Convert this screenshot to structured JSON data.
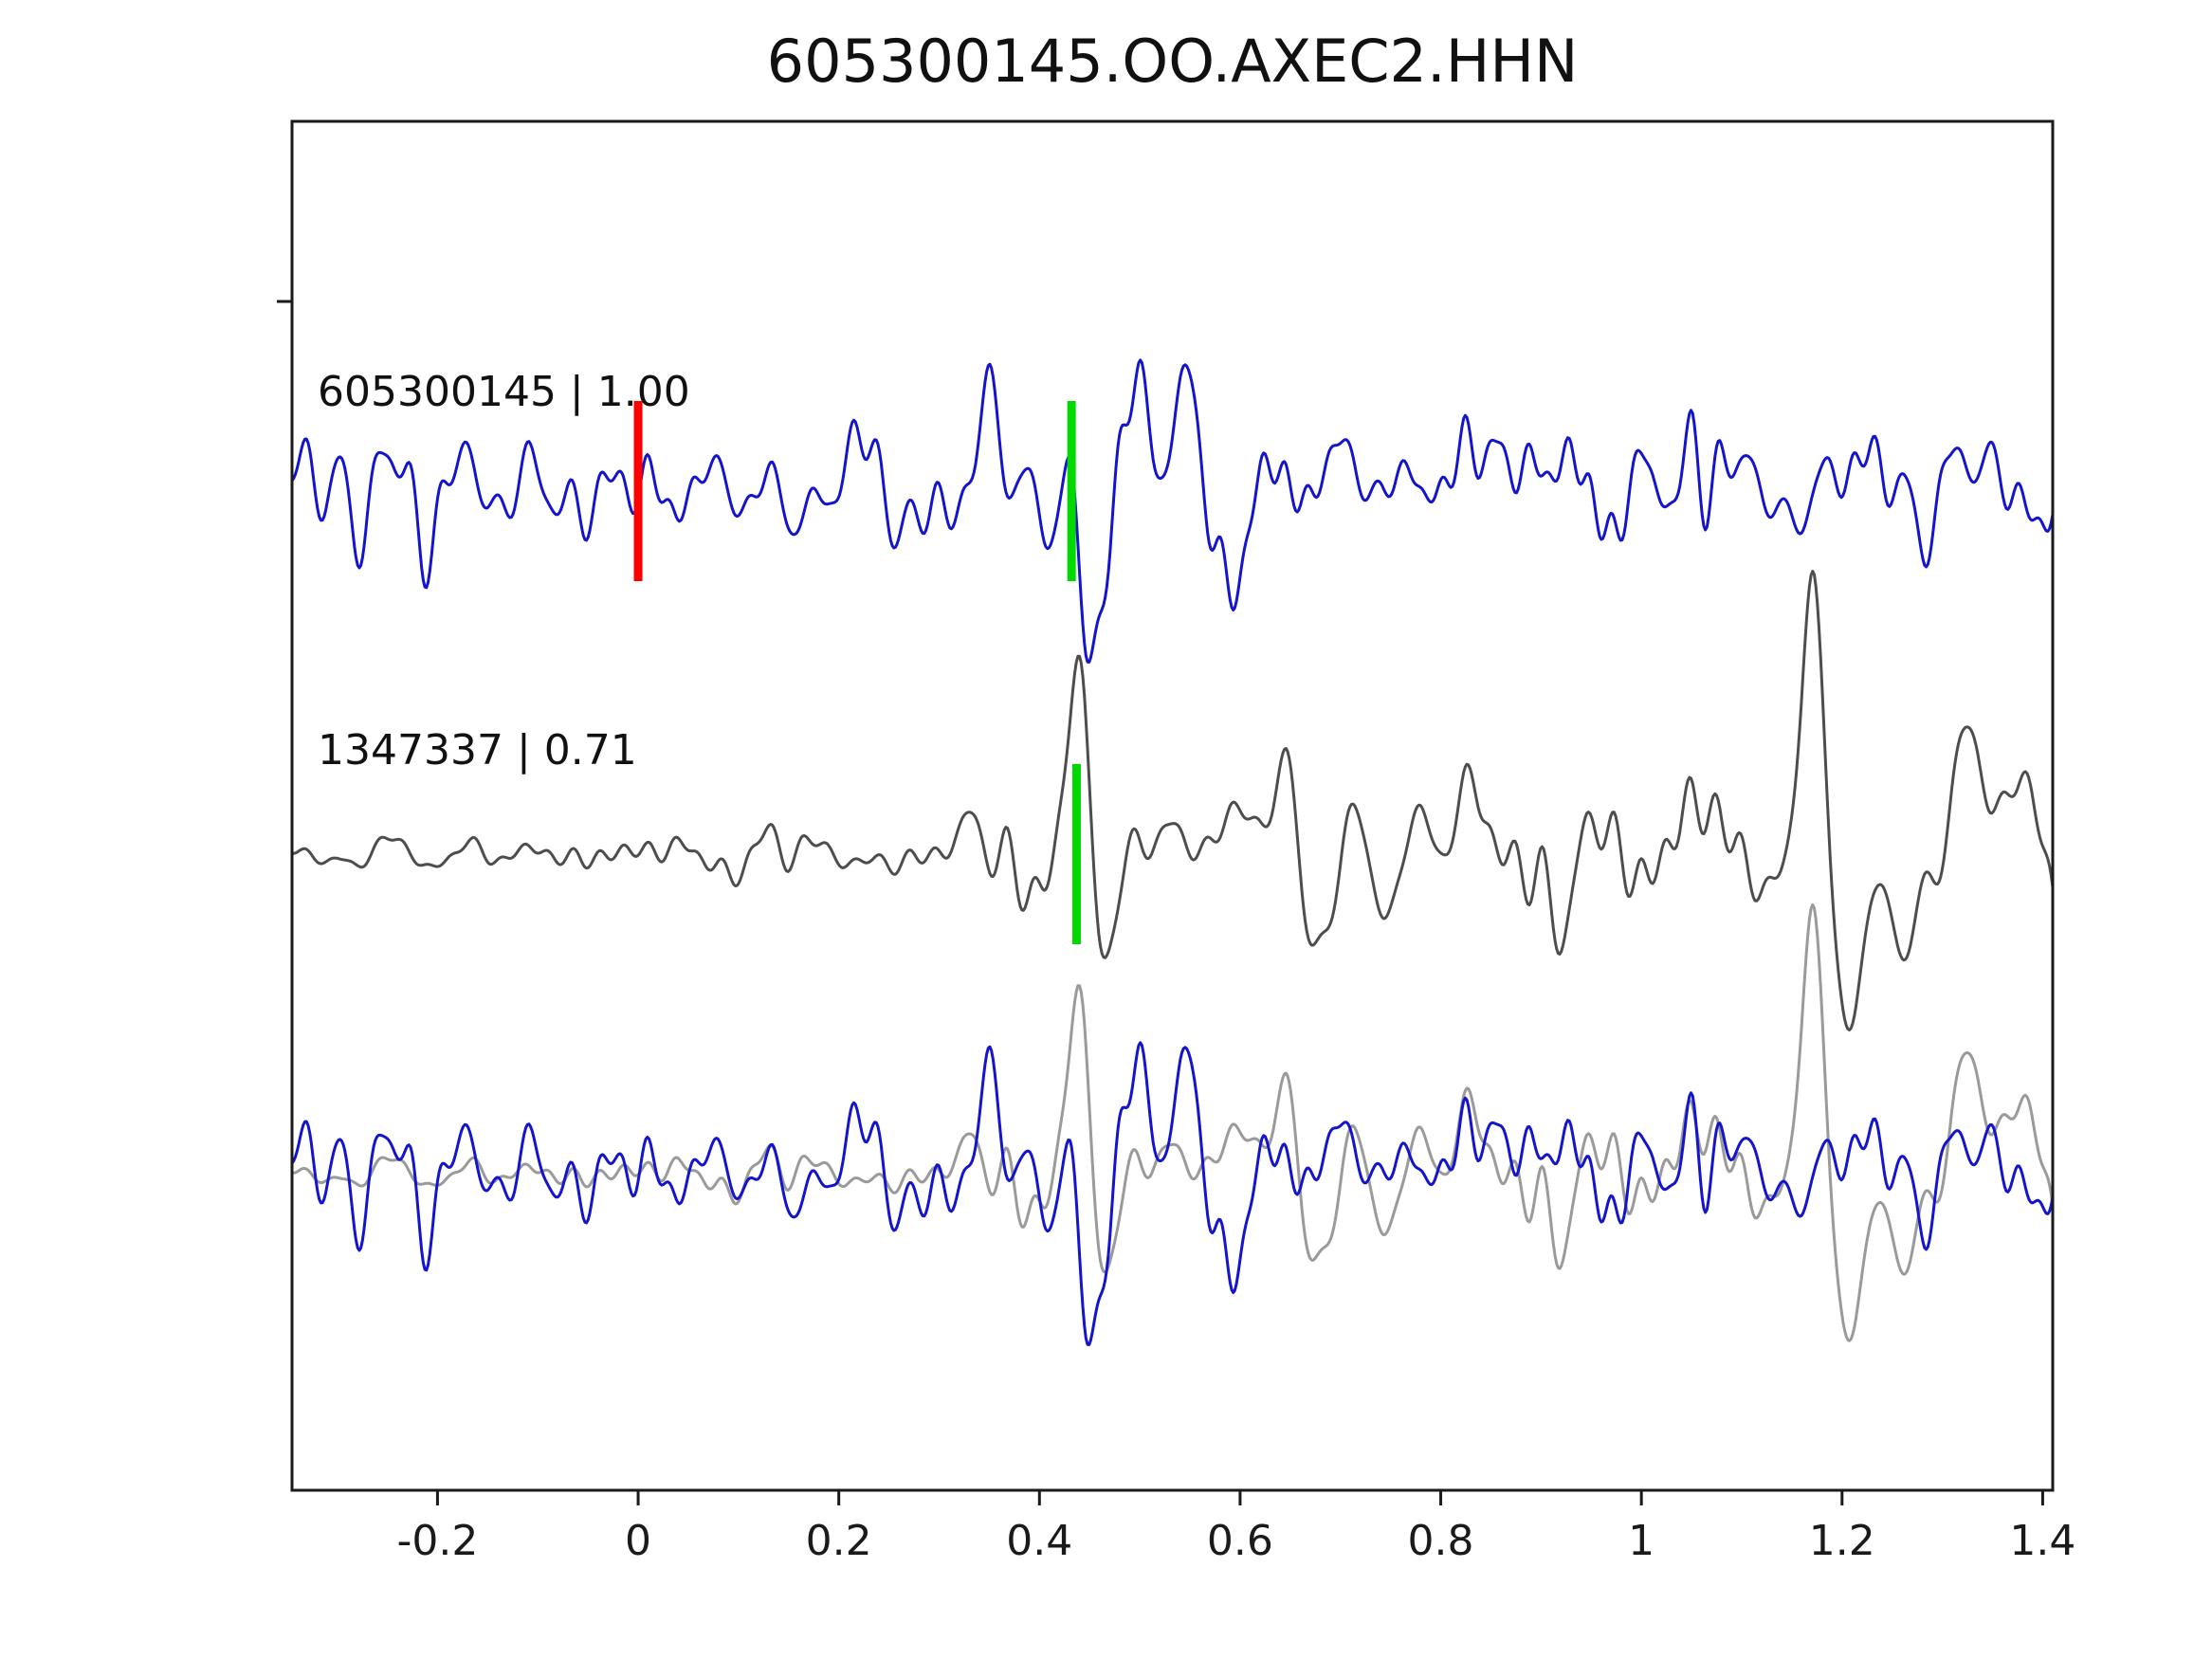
{
  "title": "605300145.OO.AXEC2.HHN",
  "chart_data": {
    "type": "line",
    "title": "605300145.OO.AXEC2.HHN",
    "xlabel": "",
    "ylabel": "",
    "xlim": [
      -0.345,
      1.41
    ],
    "x_ticks": [
      -0.2,
      0,
      0.2,
      0.4,
      0.6,
      0.8,
      1,
      1.2,
      1.4
    ],
    "x_tick_labels": [
      "-0.2",
      "0",
      "0.2",
      "0.4",
      "0.6",
      "0.8",
      "1",
      "1.2",
      "1.4"
    ],
    "grid": false,
    "legend": "none",
    "note": "Template-matching waveform comparison: top trace = template 605300145 (cc 1.00, blue) with red pick at t=0 and green pick near t=0.43; middle trace = detection 1347337 (cc 0.71, dark gray) with green pick near t=0.44; bottom = aligned overlay of both traces.",
    "rows": [
      {
        "name": "template",
        "label": "605300145 | 1.00",
        "traces": [
          {
            "waveform": "template",
            "color": "#1414cc",
            "width": 3
          }
        ],
        "markers": [
          {
            "x": 0.0,
            "color": "#ff0000"
          },
          {
            "x": 0.432,
            "color": "#00d800"
          }
        ]
      },
      {
        "name": "detection",
        "label": "1347337 | 0.71",
        "traces": [
          {
            "waveform": "detection",
            "color": "#4d4d4d",
            "width": 3
          }
        ],
        "markers": [
          {
            "x": 0.437,
            "color": "#00d800"
          }
        ]
      },
      {
        "name": "overlay",
        "label": "",
        "traces": [
          {
            "waveform": "detection",
            "color": "#9a9a9a",
            "width": 3
          },
          {
            "waveform": "template",
            "color": "#1414cc",
            "width": 3
          }
        ],
        "markers": []
      }
    ],
    "waveforms": {
      "template": {
        "seed": 7,
        "f0": 6,
        "f1": 46,
        "n": 40,
        "noise_amp": 0.16,
        "env": [
          [
            -0.35,
            1
          ],
          [
            1.45,
            1
          ]
        ],
        "features": [
          {
            "x": 0.345,
            "amp": 0.28,
            "w": 0.012
          },
          {
            "x": 0.43,
            "amp": 0.22,
            "w": 0.01
          },
          {
            "x": 0.455,
            "amp": -1.0,
            "w": 0.015
          },
          {
            "x": 0.5,
            "amp": 0.6,
            "w": 0.018
          },
          {
            "x": 0.545,
            "amp": 0.45,
            "w": 0.018
          },
          {
            "x": 0.585,
            "amp": -0.42,
            "w": 0.018
          },
          {
            "x": 0.7,
            "amp": 0.28,
            "w": 0.016
          },
          {
            "x": 0.82,
            "amp": 0.38,
            "w": 0.02
          },
          {
            "x": 0.9,
            "amp": 0.33,
            "w": 0.016
          },
          {
            "x": 1.08,
            "amp": 0.3,
            "w": 0.015
          },
          {
            "x": 1.27,
            "amp": 0.24,
            "w": 0.015
          }
        ]
      },
      "detection": {
        "seed": 13,
        "f0": 6,
        "f1": 42,
        "n": 40,
        "noise_amp": 0.13,
        "env": [
          [
            -0.35,
            0.3
          ],
          [
            0.0,
            0.4
          ],
          [
            0.25,
            0.75
          ],
          [
            0.4,
            1
          ],
          [
            1.45,
            1
          ]
        ],
        "features": [
          {
            "x": 0.437,
            "amp": 0.95,
            "w": 0.013
          },
          {
            "x": 0.468,
            "amp": -0.6,
            "w": 0.016
          },
          {
            "x": 0.52,
            "amp": 0.28,
            "w": 0.018
          },
          {
            "x": 0.6,
            "amp": 0.3,
            "w": 0.02
          },
          {
            "x": 0.645,
            "amp": 0.35,
            "w": 0.018
          },
          {
            "x": 0.675,
            "amp": -0.45,
            "w": 0.018
          },
          {
            "x": 0.83,
            "amp": 0.4,
            "w": 0.015
          },
          {
            "x": 0.92,
            "amp": -0.35,
            "w": 0.015
          },
          {
            "x": 1.05,
            "amp": 0.35,
            "w": 0.015
          },
          {
            "x": 1.17,
            "amp": 1.05,
            "w": 0.017
          },
          {
            "x": 1.21,
            "amp": -0.8,
            "w": 0.02
          },
          {
            "x": 1.265,
            "amp": -0.5,
            "w": 0.018
          },
          {
            "x": 1.325,
            "amp": 0.55,
            "w": 0.022
          },
          {
            "x": 1.385,
            "amp": 0.5,
            "w": 0.018
          },
          {
            "x": 1.425,
            "amp": -0.7,
            "w": 0.015
          }
        ]
      }
    },
    "colors": {
      "template_trace": "#1414cc",
      "detection_trace": "#4d4d4d",
      "overlay_detection_trace": "#9a9a9a",
      "pick_red": "#ff0000",
      "pick_green": "#00d800",
      "axis": "#1a1a1a"
    }
  }
}
